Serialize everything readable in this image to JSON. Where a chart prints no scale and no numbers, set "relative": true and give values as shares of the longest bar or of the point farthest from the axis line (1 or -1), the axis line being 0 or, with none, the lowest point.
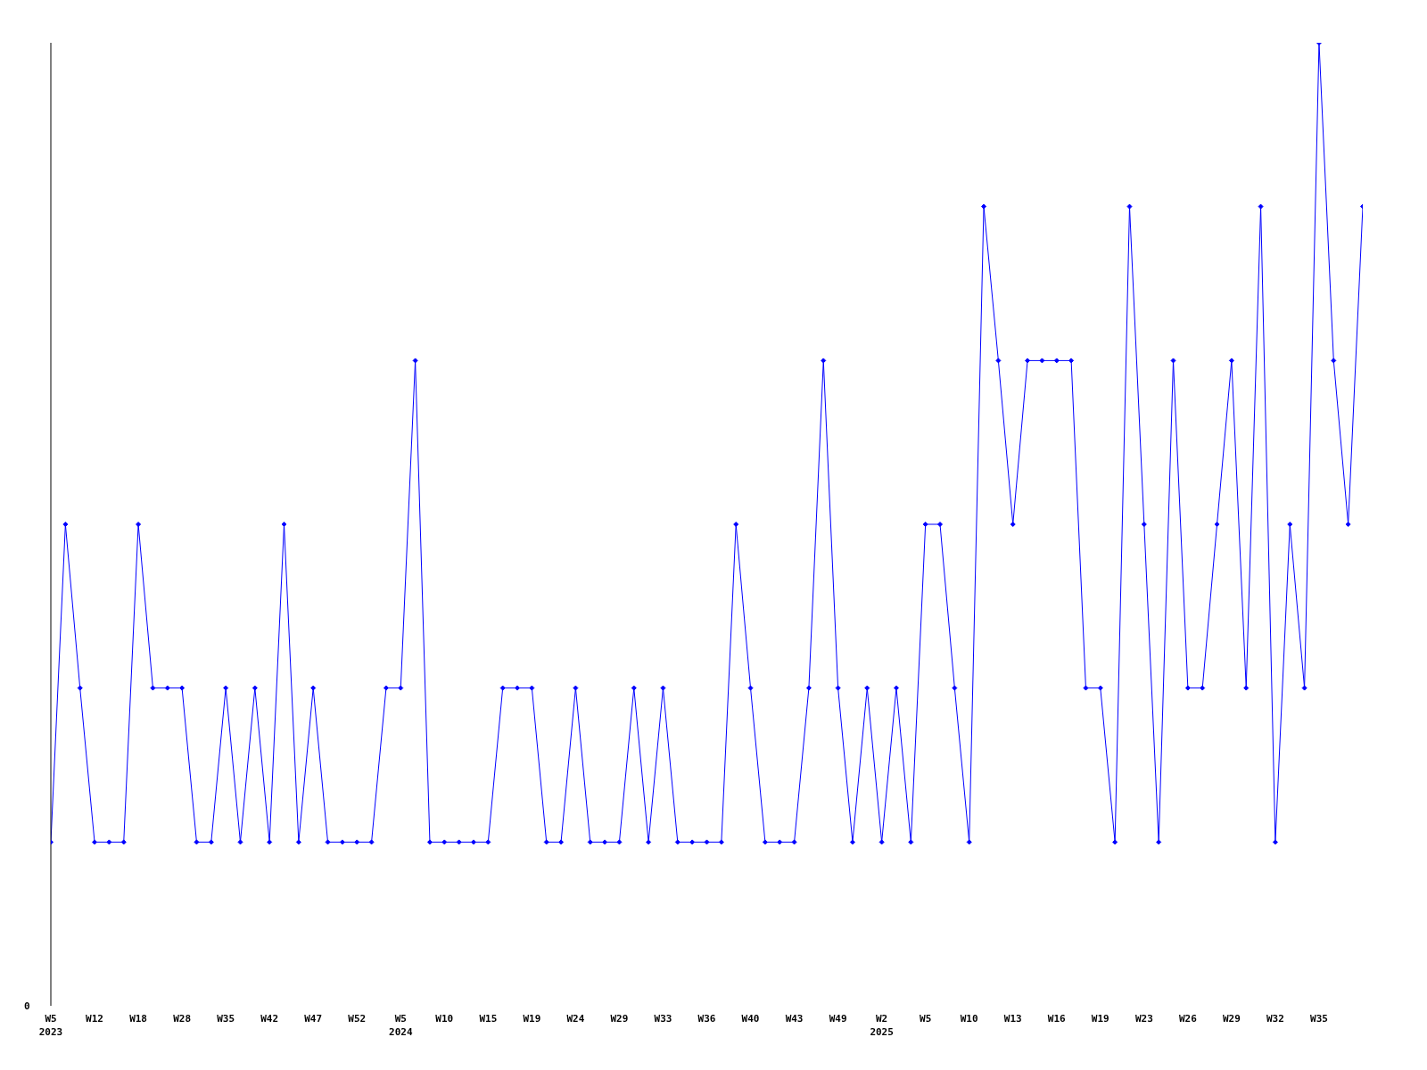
{
  "chart_data": {
    "type": "line",
    "relative": true,
    "annotations": [
      "0"
    ],
    "marker": "diamond",
    "grid": false,
    "legend": false,
    "categories": [
      "W5\n2023",
      null,
      null,
      "W12",
      null,
      null,
      "W18",
      null,
      null,
      "W28",
      null,
      null,
      "W35",
      null,
      null,
      "W42",
      null,
      null,
      "W47",
      null,
      null,
      "W52",
      null,
      null,
      "W5\n2024",
      null,
      null,
      "W10",
      null,
      null,
      "W15",
      null,
      null,
      "W19",
      null,
      null,
      "W24",
      null,
      null,
      "W29",
      null,
      null,
      "W33",
      null,
      null,
      "W36",
      null,
      null,
      "W40",
      null,
      null,
      "W43",
      null,
      null,
      "W49",
      null,
      null,
      "W2\n2025",
      null,
      null,
      "W5",
      null,
      null,
      "W10",
      null,
      null,
      "W13",
      null,
      null,
      "W16",
      null,
      null,
      "W19",
      null,
      null,
      "W23",
      null,
      null,
      "W26",
      null,
      null,
      "W29",
      null,
      null,
      "W32",
      null,
      null,
      "W35",
      null,
      null,
      null
    ],
    "series": [
      {
        "color": "#0000ff",
        "values": [
          0.17,
          0.5,
          0.33,
          0.17,
          0.17,
          0.17,
          0.5,
          0.33,
          0.33,
          0.33,
          0.17,
          0.17,
          0.33,
          0.17,
          0.33,
          0.17,
          0.5,
          0.17,
          0.33,
          0.17,
          0.17,
          0.17,
          0.17,
          0.33,
          0.33,
          0.67,
          0.17,
          0.17,
          0.17,
          0.17,
          0.17,
          0.33,
          0.33,
          0.33,
          0.17,
          0.17,
          0.33,
          0.17,
          0.17,
          0.17,
          0.33,
          0.17,
          0.33,
          0.17,
          0.17,
          0.17,
          0.17,
          0.5,
          0.33,
          0.17,
          0.17,
          0.17,
          0.33,
          0.67,
          0.33,
          0.17,
          0.33,
          0.17,
          0.33,
          0.17,
          0.5,
          0.5,
          0.33,
          0.17,
          0.83,
          0.67,
          0.5,
          0.67,
          0.67,
          0.67,
          0.67,
          0.33,
          0.33,
          0.17,
          0.83,
          0.5,
          0.17,
          0.67,
          0.33,
          0.33,
          0.5,
          0.67,
          0.33,
          0.83,
          0.17,
          0.5,
          0.33,
          1,
          0.67,
          0.5,
          0.83
        ]
      }
    ]
  }
}
